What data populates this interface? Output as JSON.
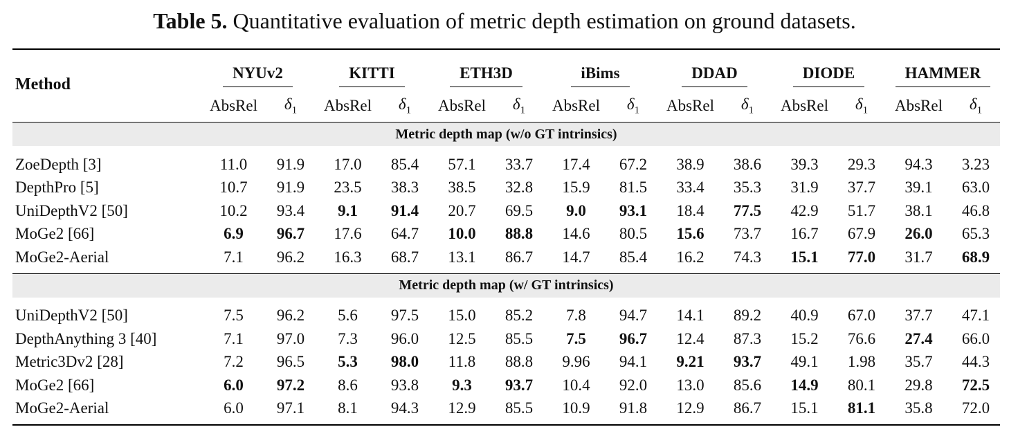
{
  "caption": {
    "label": "Table 5.",
    "text": "Quantitative evaluation of metric depth estimation on ground datasets."
  },
  "columns": {
    "method": "Method",
    "datasets": [
      "NYUv2",
      "KITTI",
      "ETH3D",
      "iBims",
      "DDAD",
      "DIODE",
      "HAMMER"
    ],
    "metric_absrel": "AbsRel",
    "metric_delta": "δ",
    "metric_delta_sub": "1"
  },
  "sections": [
    {
      "title": "Metric depth map (w/o GT intrinsics)",
      "rows": [
        {
          "method": "ZoeDepth [3]",
          "values": [
            "11.0",
            "91.9",
            "17.0",
            "85.4",
            "57.1",
            "33.7",
            "17.4",
            "67.2",
            "38.9",
            "38.6",
            "39.3",
            "29.3",
            "94.3",
            "3.23"
          ],
          "bold": []
        },
        {
          "method": "DepthPro [5]",
          "values": [
            "10.7",
            "91.9",
            "23.5",
            "38.3",
            "38.5",
            "32.8",
            "15.9",
            "81.5",
            "33.4",
            "35.3",
            "31.9",
            "37.7",
            "39.1",
            "63.0"
          ],
          "bold": []
        },
        {
          "method": "UniDepthV2 [50]",
          "values": [
            "10.2",
            "93.4",
            "9.1",
            "91.4",
            "20.7",
            "69.5",
            "9.0",
            "93.1",
            "18.4",
            "77.5",
            "42.9",
            "51.7",
            "38.1",
            "46.8"
          ],
          "bold": [
            2,
            3,
            6,
            7,
            9
          ]
        },
        {
          "method": "MoGe2 [66]",
          "values": [
            "6.9",
            "96.7",
            "17.6",
            "64.7",
            "10.0",
            "88.8",
            "14.6",
            "80.5",
            "15.6",
            "73.7",
            "16.7",
            "67.9",
            "26.0",
            "65.3"
          ],
          "bold": [
            0,
            1,
            4,
            5,
            8,
            12
          ]
        },
        {
          "method": "MoGe2-Aerial",
          "values": [
            "7.1",
            "96.2",
            "16.3",
            "68.7",
            "13.1",
            "86.7",
            "14.7",
            "85.4",
            "16.2",
            "74.3",
            "15.1",
            "77.0",
            "31.7",
            "68.9"
          ],
          "bold": [
            10,
            11,
            13
          ]
        }
      ]
    },
    {
      "title": "Metric depth map (w/ GT intrinsics)",
      "rows": [
        {
          "method": "UniDepthV2 [50]",
          "values": [
            "7.5",
            "96.2",
            "5.6",
            "97.5",
            "15.0",
            "85.2",
            "7.8",
            "94.7",
            "14.1",
            "89.2",
            "40.9",
            "67.0",
            "37.7",
            "47.1"
          ],
          "bold": []
        },
        {
          "method": "DepthAnything 3 [40]",
          "values": [
            "7.1",
            "97.0",
            "7.3",
            "96.0",
            "12.5",
            "85.5",
            "7.5",
            "96.7",
            "12.4",
            "87.3",
            "15.2",
            "76.6",
            "27.4",
            "66.0"
          ],
          "bold": [
            6,
            7,
            12
          ]
        },
        {
          "method": "Metric3Dv2 [28]",
          "values": [
            "7.2",
            "96.5",
            "5.3",
            "98.0",
            "11.8",
            "88.8",
            "9.96",
            "94.1",
            "9.21",
            "93.7",
            "49.1",
            "1.98",
            "35.7",
            "44.3"
          ],
          "bold": [
            2,
            3,
            8,
            9
          ]
        },
        {
          "method": "MoGe2 [66]",
          "values": [
            "6.0",
            "97.2",
            "8.6",
            "93.8",
            "9.3",
            "93.7",
            "10.4",
            "92.0",
            "13.0",
            "85.6",
            "14.9",
            "80.1",
            "29.8",
            "72.5"
          ],
          "bold": [
            0,
            1,
            4,
            5,
            10,
            13
          ]
        },
        {
          "method": "MoGe2-Aerial",
          "values": [
            "6.0",
            "97.1",
            "8.1",
            "94.3",
            "12.9",
            "85.5",
            "10.9",
            "91.8",
            "12.9",
            "86.7",
            "15.1",
            "81.1",
            "35.8",
            "72.0"
          ],
          "bold": [
            11
          ]
        }
      ]
    }
  ]
}
